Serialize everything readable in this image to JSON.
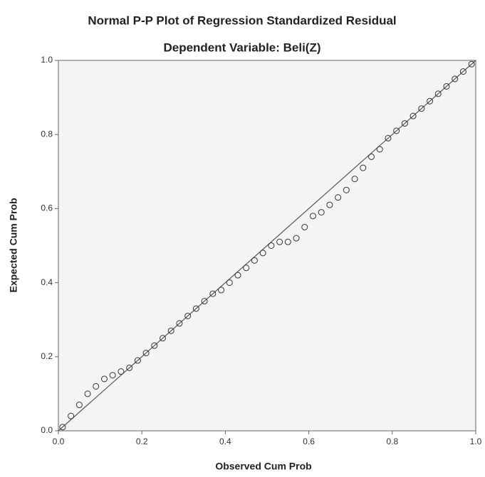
{
  "chart_data": {
    "type": "scatter",
    "title": "Normal P-P Plot of Regression Standardized Residual",
    "subtitle": "Dependent Variable: Beli(Z)",
    "x_label": "Observed Cum Prob",
    "y_label": "Expected Cum Prob",
    "xlim": [
      0,
      1
    ],
    "ylim": [
      0,
      1
    ],
    "xticks": [
      {
        "value": 0,
        "label": "0.0"
      },
      {
        "value": 0.2,
        "label": "0.2"
      },
      {
        "value": 0.4,
        "label": "0.4"
      },
      {
        "value": 0.6,
        "label": "0.6"
      },
      {
        "value": 0.8,
        "label": "0.8"
      },
      {
        "value": 1,
        "label": "1.0"
      }
    ],
    "yticks": [
      {
        "value": 0,
        "label": "0.0"
      },
      {
        "value": 0.2,
        "label": "0.2"
      },
      {
        "value": 0.4,
        "label": "0.4"
      },
      {
        "value": 0.6,
        "label": "0.6"
      },
      {
        "value": 0.8,
        "label": "0.8"
      },
      {
        "value": 1,
        "label": "1.0"
      }
    ],
    "color": "#333333",
    "x": [
      0.01,
      0.03,
      0.05,
      0.07,
      0.09,
      0.11,
      0.13,
      0.15,
      0.17,
      0.19,
      0.21,
      0.23,
      0.25,
      0.27,
      0.29,
      0.31,
      0.33,
      0.35,
      0.37,
      0.39,
      0.41,
      0.43,
      0.45,
      0.47,
      0.49,
      0.51,
      0.53,
      0.55,
      0.57,
      0.59,
      0.61,
      0.63,
      0.65,
      0.67,
      0.69,
      0.71,
      0.73,
      0.75,
      0.77,
      0.79,
      0.81,
      0.83,
      0.85,
      0.87,
      0.89,
      0.91,
      0.93,
      0.95,
      0.97,
      0.99
    ],
    "values": [
      0.01,
      0.04,
      0.07,
      0.1,
      0.12,
      0.14,
      0.15,
      0.16,
      0.17,
      0.19,
      0.21,
      0.23,
      0.25,
      0.27,
      0.29,
      0.31,
      0.33,
      0.35,
      0.37,
      0.38,
      0.4,
      0.42,
      0.44,
      0.46,
      0.48,
      0.5,
      0.51,
      0.51,
      0.52,
      0.55,
      0.58,
      0.59,
      0.61,
      0.63,
      0.65,
      0.68,
      0.71,
      0.74,
      0.76,
      0.79,
      0.81,
      0.83,
      0.85,
      0.87,
      0.89,
      0.91,
      0.93,
      0.95,
      0.97,
      0.99
    ]
  }
}
